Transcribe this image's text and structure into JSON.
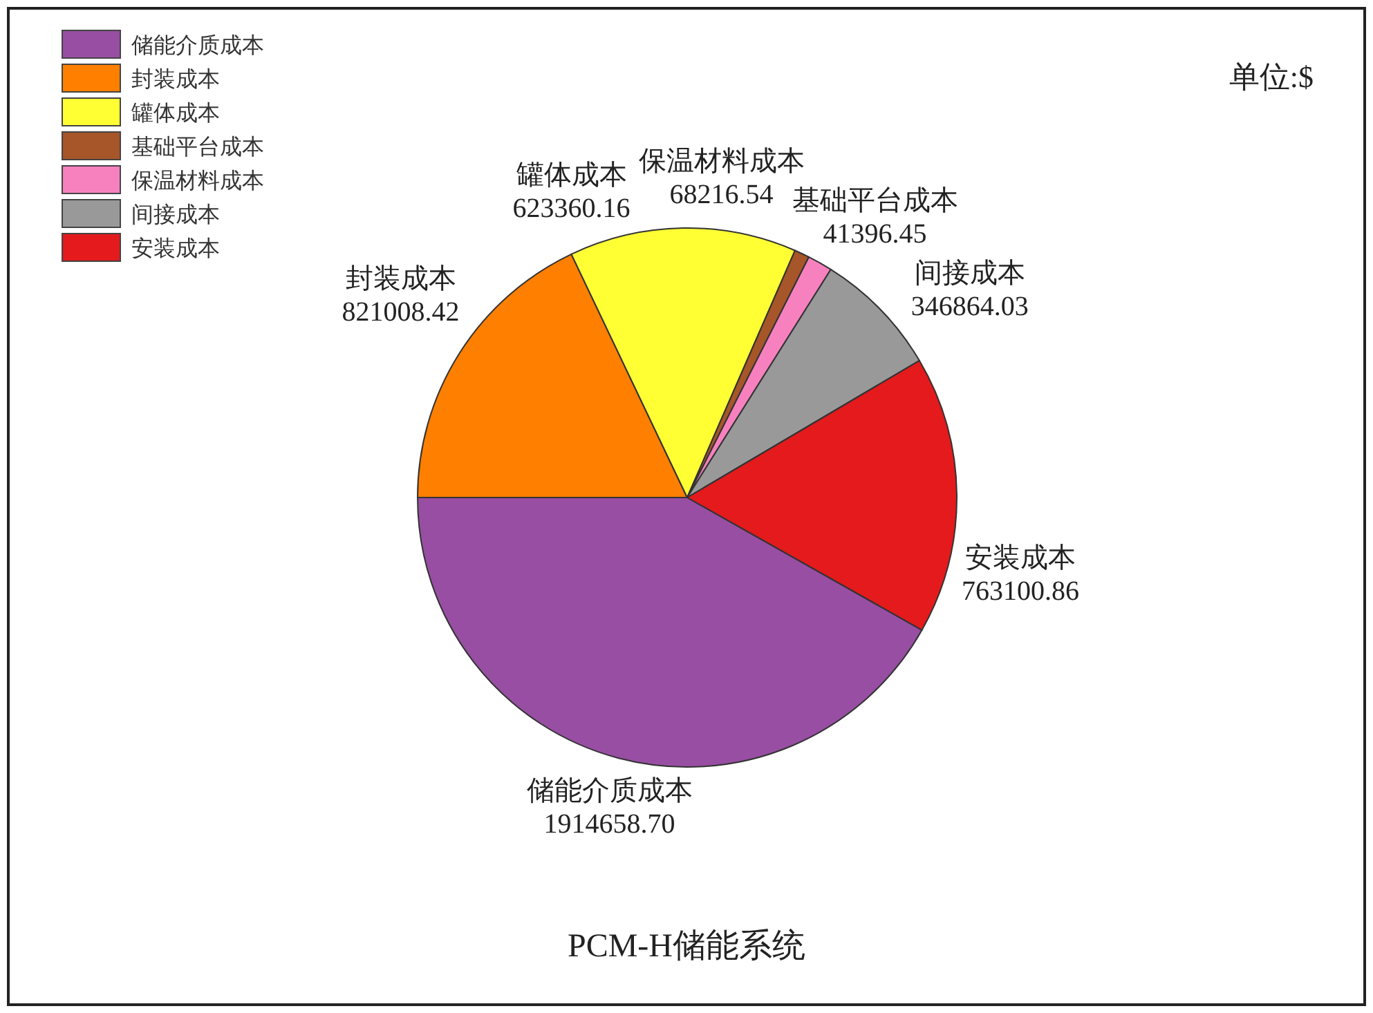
{
  "chart_data": {
    "type": "pie",
    "title": "PCM-H储能系统",
    "annotations": [
      "单位:$"
    ],
    "categories": [
      "储能介质成本",
      "封装成本",
      "罐体成本",
      "基础平台成本",
      "保温材料成本",
      "间接成本",
      "安装成本"
    ],
    "values": [
      1914658.7,
      821008.42,
      623360.16,
      41396.45,
      68216.54,
      346864.03,
      763100.86
    ],
    "value_labels": [
      "1914658.70",
      "821008.42",
      "623360.16",
      "41396.45",
      "68216.54",
      "346864.03",
      "763100.86"
    ],
    "colors": [
      "#984ea3",
      "#ff7f00",
      "#ffff33",
      "#a65628",
      "#f781bf",
      "#999999",
      "#e41a1c"
    ],
    "legend": "top left"
  }
}
